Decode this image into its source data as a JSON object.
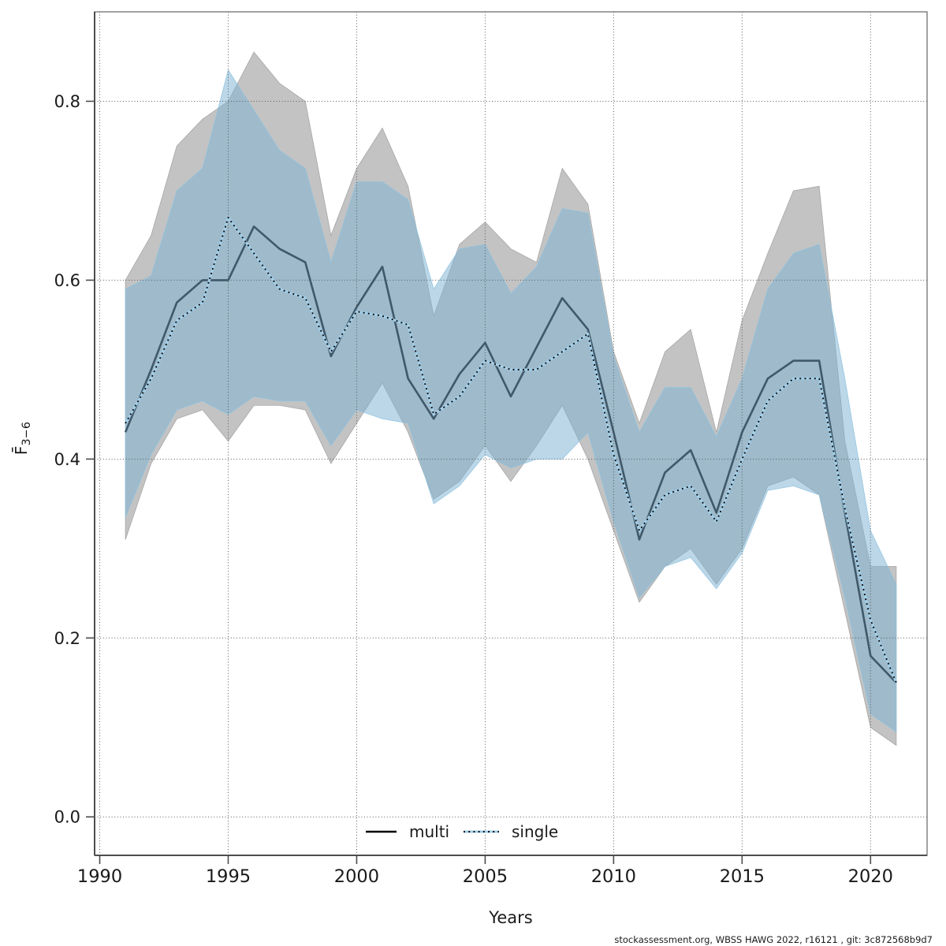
{
  "footer": "stockassessment.org, WBSS HAWG 2022, r16121 , git: 3c872568b9d7",
  "chart_data": {
    "type": "line",
    "title": "",
    "xlabel": "Years",
    "ylabel_main": "F̄",
    "ylabel_sub": "3−6",
    "grid": true,
    "legend_position": "bottom-center-inside",
    "xlim": [
      1989.8,
      2022.2
    ],
    "ylim": [
      -0.043,
      0.9
    ],
    "xticks": [
      1990,
      1995,
      2000,
      2005,
      2010,
      2015,
      2020
    ],
    "xtick_labels": [
      "1990",
      "1995",
      "2000",
      "2005",
      "2010",
      "2015",
      "2020"
    ],
    "yticks": [
      0.0,
      0.2,
      0.4,
      0.6,
      0.8
    ],
    "ytick_labels": [
      "0.0",
      "0.2",
      "0.4",
      "0.6",
      "0.8"
    ],
    "years": [
      1991,
      1992,
      1993,
      1994,
      1995,
      1996,
      1997,
      1998,
      1999,
      2000,
      2001,
      2002,
      2003,
      2004,
      2005,
      2006,
      2007,
      2008,
      2009,
      2010,
      2011,
      2012,
      2013,
      2014,
      2015,
      2016,
      2017,
      2018,
      2019,
      2020,
      2021
    ],
    "series": [
      {
        "name": "multi",
        "values": [
          0.43,
          0.5,
          0.575,
          0.6,
          0.6,
          0.66,
          0.635,
          0.62,
          0.515,
          0.57,
          0.615,
          0.49,
          0.445,
          0.495,
          0.53,
          0.47,
          0.525,
          0.58,
          0.545,
          0.43,
          0.31,
          0.385,
          0.41,
          0.34,
          0.43,
          0.49,
          0.51,
          0.51,
          0.34,
          0.18,
          0.15
        ],
        "lo": [
          0.31,
          0.395,
          0.445,
          0.455,
          0.42,
          0.46,
          0.46,
          0.455,
          0.395,
          0.44,
          0.485,
          0.43,
          0.355,
          0.375,
          0.415,
          0.375,
          0.415,
          0.46,
          0.4,
          0.32,
          0.24,
          0.28,
          0.3,
          0.26,
          0.3,
          0.37,
          0.38,
          0.36,
          0.23,
          0.1,
          0.08
        ],
        "hi": [
          0.6,
          0.65,
          0.75,
          0.78,
          0.8,
          0.855,
          0.82,
          0.8,
          0.65,
          0.725,
          0.77,
          0.705,
          0.56,
          0.64,
          0.665,
          0.635,
          0.62,
          0.725,
          0.685,
          0.52,
          0.44,
          0.52,
          0.545,
          0.43,
          0.555,
          0.63,
          0.7,
          0.705,
          0.42,
          0.28,
          0.28
        ]
      },
      {
        "name": "single",
        "values": [
          0.44,
          0.49,
          0.555,
          0.575,
          0.67,
          0.63,
          0.59,
          0.58,
          0.52,
          0.565,
          0.56,
          0.55,
          0.45,
          0.47,
          0.51,
          0.5,
          0.5,
          0.52,
          0.54,
          0.405,
          0.32,
          0.36,
          0.37,
          0.33,
          0.4,
          0.465,
          0.49,
          0.49,
          0.345,
          0.22,
          0.15
        ],
        "lo": [
          0.335,
          0.405,
          0.455,
          0.465,
          0.45,
          0.47,
          0.465,
          0.465,
          0.415,
          0.455,
          0.445,
          0.44,
          0.35,
          0.37,
          0.405,
          0.39,
          0.4,
          0.4,
          0.43,
          0.33,
          0.245,
          0.28,
          0.29,
          0.255,
          0.295,
          0.365,
          0.37,
          0.36,
          0.245,
          0.115,
          0.095
        ],
        "hi": [
          0.59,
          0.605,
          0.7,
          0.725,
          0.835,
          0.79,
          0.745,
          0.725,
          0.62,
          0.71,
          0.71,
          0.69,
          0.59,
          0.635,
          0.64,
          0.585,
          0.615,
          0.68,
          0.675,
          0.515,
          0.43,
          0.48,
          0.48,
          0.425,
          0.49,
          0.59,
          0.63,
          0.64,
          0.49,
          0.32,
          0.26
        ]
      }
    ],
    "legend": [
      {
        "label": "multi"
      },
      {
        "label": "single"
      }
    ],
    "colors": {
      "multi_band": "#c3c3c3",
      "multi_band_edge": "#a6a6a6",
      "single_band": "#7db3d3",
      "single_band_edge": "#8fc3e0",
      "single_band_opacity": "0.52",
      "multi_line": "#40596a",
      "multi_legend_line": "#000000",
      "single_line_casing": "#a3cfe9",
      "single_line_dots": "#0d0d0d",
      "grid": "#595959",
      "axis": "#4d4d4d",
      "frame": "#7a7a7a",
      "text": "#1a1a1a"
    }
  }
}
